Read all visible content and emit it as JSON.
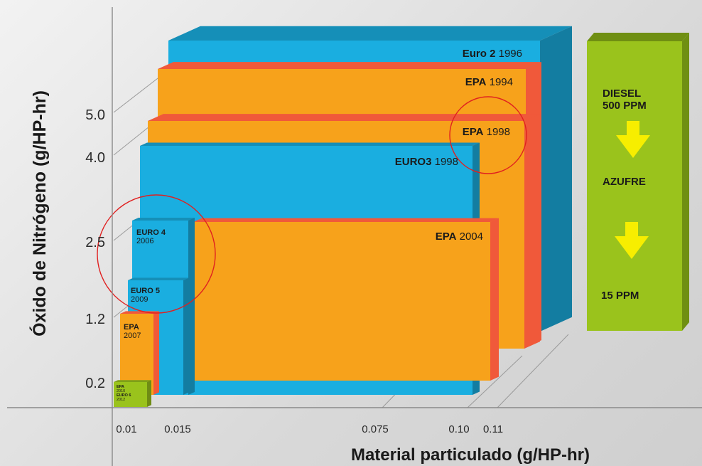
{
  "chart_data": {
    "type": "bar",
    "subtype": "3d-nested-rectangles",
    "xlabel": "Material particulado (g/HP-hr)",
    "ylabel": "Óxido de Nitrógeno (g/HP-hr)",
    "x_ticks": [
      "0.01",
      "0.015",
      "0.075",
      "0.10",
      "0.11"
    ],
    "y_ticks": [
      "0.2",
      "1.2",
      "2.5",
      "4.0",
      "5.0"
    ],
    "standards": [
      {
        "id": "euro2-1996",
        "bold": "Euro 2",
        "year": "1996",
        "pm": 0.15,
        "nox": 7.0,
        "color": "#1aaee0"
      },
      {
        "id": "epa-1994",
        "bold": "EPA",
        "year": "1994",
        "pm": 0.1,
        "nox": 5.0,
        "color": "#f7a21b"
      },
      {
        "id": "epa-1998",
        "bold": "EPA",
        "year": "1998",
        "pm": 0.1,
        "nox": 4.0,
        "color": "#f7a21b"
      },
      {
        "id": "euro3-1998",
        "bold": "EURO3",
        "year": "1998",
        "pm": 0.1,
        "nox": 5.0,
        "color": "#1aaee0"
      },
      {
        "id": "epa-2004",
        "bold": "EPA",
        "year": "2004",
        "pm": 0.1,
        "nox": 2.5,
        "color": "#f7a21b"
      },
      {
        "id": "euro4-2006",
        "bold": "EURO 4",
        "year": "2006",
        "pm": 0.02,
        "nox": 3.5,
        "color": "#1aaee0"
      },
      {
        "id": "euro5-2009",
        "bold": "EURO 5",
        "year": "2009",
        "pm": 0.02,
        "nox": 2.0,
        "color": "#1aaee0"
      },
      {
        "id": "epa-2007",
        "bold": "EPA",
        "year": "2007",
        "pm": 0.01,
        "nox": 1.2,
        "color": "#f7a21b"
      },
      {
        "id": "epa2010-euro6",
        "lines": [
          "EPA",
          "2010",
          "EURO 6",
          "2012"
        ],
        "pm": 0.01,
        "nox": 0.2,
        "color": "#9ac31c"
      }
    ],
    "annotations": [
      {
        "id": "circle-epa-1998",
        "target": "epa-1998",
        "color": "#e02020"
      },
      {
        "id": "circle-euro4",
        "target": "euro4-2006",
        "color": "#e02020"
      }
    ],
    "sulfur_panel": {
      "lines_top": [
        "DIESEL",
        "500 PPM"
      ],
      "middle": "AZUFRE",
      "bottom": "15 PPM",
      "color": "#9ac31c",
      "arrow_color": "#f7ee00"
    }
  }
}
